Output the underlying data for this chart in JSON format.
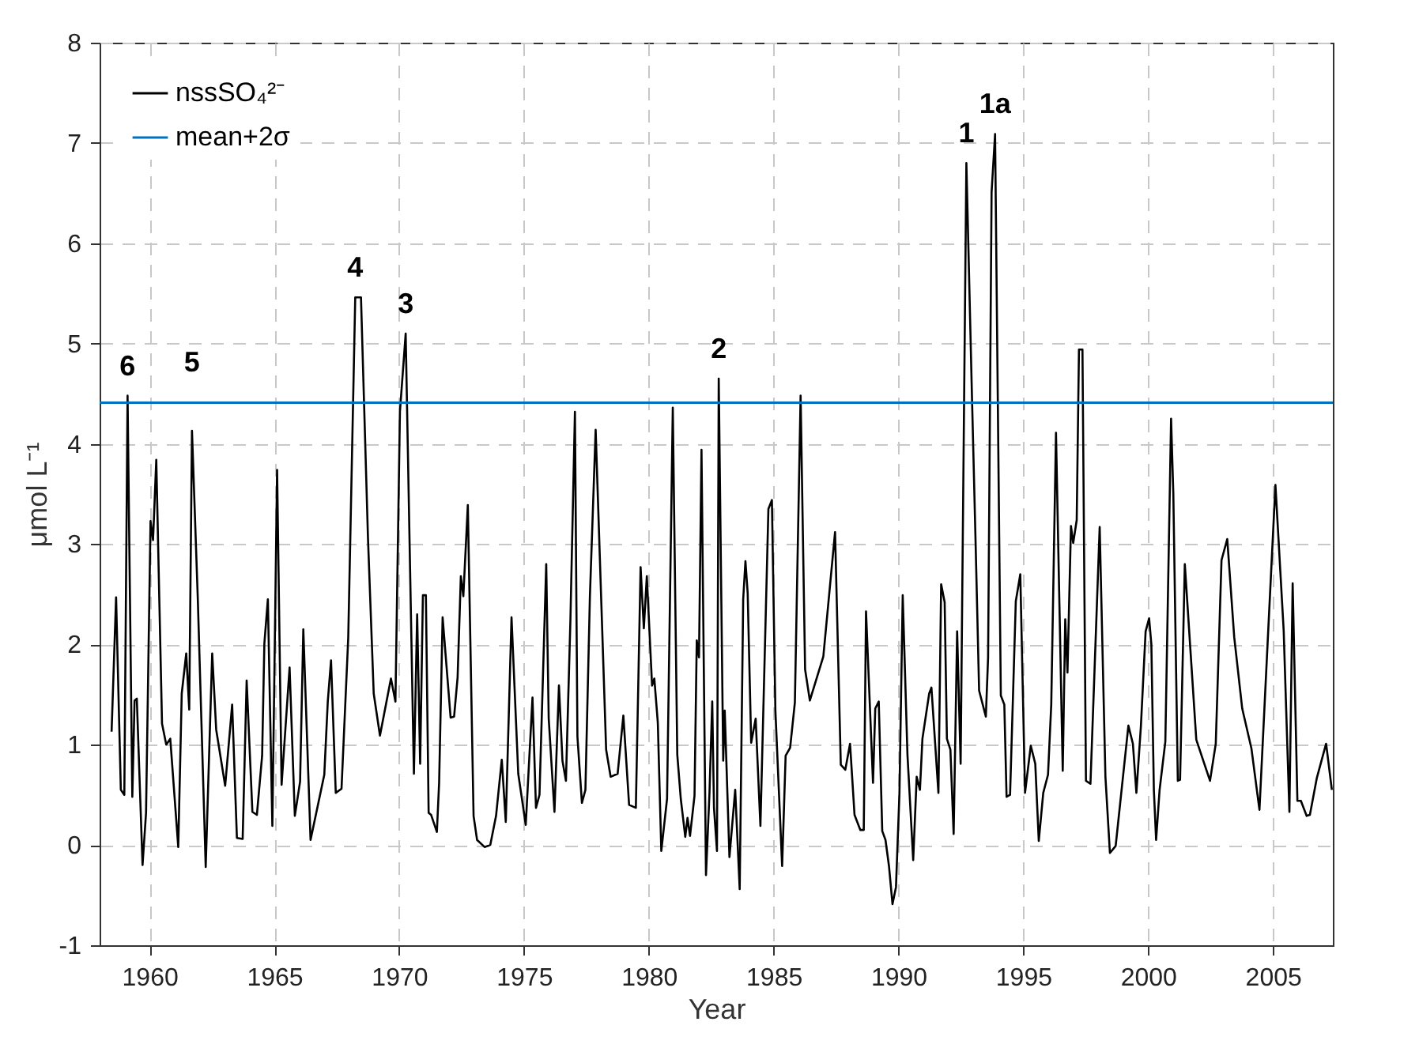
{
  "chart_data": {
    "type": "line",
    "xlabel": "Year",
    "ylabel": "μmol L⁻¹",
    "xlim": [
      1958,
      2007.4
    ],
    "ylim": [
      -1,
      8
    ],
    "xticks": [
      1960,
      1965,
      1970,
      1975,
      1980,
      1985,
      1990,
      1995,
      2000,
      2005
    ],
    "yticks": [
      -1,
      0,
      1,
      2,
      3,
      4,
      5,
      6,
      7,
      8
    ],
    "grid": true,
    "legend": "top left",
    "series": [
      {
        "name": "nssSO₄²⁻",
        "color": "#000000",
        "x": [
          1958.48,
          1958.66,
          1958.85,
          1958.99,
          1959.12,
          1959.31,
          1959.4,
          1959.49,
          1959.72,
          1959.86,
          1960.04,
          1960.14,
          1960.27,
          1960.5,
          1960.67,
          1960.83,
          1961.15,
          1961.29,
          1961.47,
          1961.59,
          1961.7,
          1961.93,
          1962.25,
          1962.51,
          1962.67,
          1963.03,
          1963.31,
          1963.5,
          1963.73,
          1963.89,
          1964.12,
          1964.3,
          1964.51,
          1964.6,
          1964.74,
          1964.92,
          1965.11,
          1965.29,
          1965.61,
          1965.82,
          1966.03,
          1966.16,
          1966.45,
          1967.0,
          1967.14,
          1967.27,
          1967.46,
          1967.69,
          1967.96,
          1968.24,
          1968.47,
          1968.75,
          1968.98,
          1969.23,
          1969.67,
          1969.85,
          1970.03,
          1970.26,
          1970.59,
          1970.72,
          1970.84,
          1970.95,
          1971.07,
          1971.18,
          1971.28,
          1971.51,
          1971.6,
          1971.74,
          1972.06,
          1972.2,
          1972.34,
          1972.47,
          1972.57,
          1972.75,
          1972.98,
          1973.12,
          1973.42,
          1973.65,
          1973.88,
          1974.11,
          1974.27,
          1974.5,
          1974.77,
          1975.07,
          1975.34,
          1975.48,
          1975.62,
          1975.89,
          1975.99,
          1976.22,
          1976.4,
          1976.54,
          1976.68,
          1976.86,
          1977.04,
          1977.14,
          1977.32,
          1977.46,
          1977.64,
          1977.87,
          1978.29,
          1978.47,
          1978.75,
          1978.98,
          1979.21,
          1979.48,
          1979.67,
          1979.8,
          1979.92,
          1980.13,
          1980.22,
          1980.36,
          1980.5,
          1980.73,
          1980.96,
          1981.14,
          1981.28,
          1981.46,
          1981.55,
          1981.65,
          1981.83,
          1981.92,
          1982.01,
          1982.11,
          1982.29,
          1982.43,
          1982.54,
          1982.61,
          1982.73,
          1982.8,
          1982.98,
          1983.04,
          1983.23,
          1983.46,
          1983.64,
          1983.78,
          1983.87,
          1983.96,
          1984.1,
          1984.28,
          1984.47,
          1984.79,
          1984.93,
          1985.07,
          1985.34,
          1985.48,
          1985.66,
          1985.85,
          1986.08,
          1986.26,
          1986.45,
          1986.99,
          1987.46,
          1987.69,
          1987.87,
          1988.06,
          1988.24,
          1988.47,
          1988.61,
          1988.7,
          1988.98,
          1989.07,
          1989.21,
          1989.35,
          1989.48,
          1989.62,
          1989.76,
          1989.9,
          1990.04,
          1990.17,
          1990.36,
          1990.59,
          1990.73,
          1990.86,
          1990.96,
          1991.23,
          1991.32,
          1991.6,
          1991.71,
          1991.85,
          1991.94,
          1992.08,
          1992.21,
          1992.35,
          1992.49,
          1992.72,
          1992.95,
          1993.09,
          1993.23,
          1993.5,
          1993.59,
          1993.73,
          1993.87,
          1994.1,
          1994.24,
          1994.33,
          1994.47,
          1994.7,
          1994.88,
          1995.07,
          1995.3,
          1995.48,
          1995.62,
          1995.8,
          1995.99,
          1996.12,
          1996.31,
          1996.58,
          1996.68,
          1996.77,
          1996.91,
          1997.0,
          1997.14,
          1997.23,
          1997.37,
          1997.51,
          1997.69,
          1998.06,
          1998.29,
          1998.47,
          1998.7,
          1999.21,
          1999.39,
          1999.53,
          1999.71,
          1999.9,
          2000.04,
          2000.13,
          2000.23,
          2000.32,
          2000.46,
          2000.69,
          2000.92,
          2001.01,
          2001.19,
          2001.28,
          2001.47,
          2001.93,
          2002.48,
          2002.71,
          2002.94,
          2003.17,
          2003.45,
          2003.77,
          2004.14,
          2004.46,
          2004.78,
          2005.1,
          2005.43,
          2005.66,
          2005.79,
          2005.98,
          2006.12,
          2006.35,
          2006.48,
          2006.76,
          2007.13,
          2007.36
        ],
        "values": [
          1.13,
          2.47,
          0.55,
          0.5,
          4.48,
          0.48,
          1.44,
          1.46,
          -0.2,
          0.32,
          3.23,
          3.04,
          3.84,
          1.21,
          1.0,
          1.06,
          -0.02,
          1.51,
          1.91,
          1.35,
          4.13,
          2.48,
          -0.22,
          1.91,
          1.15,
          0.59,
          1.4,
          0.07,
          0.06,
          1.64,
          0.33,
          0.3,
          0.89,
          2.01,
          2.45,
          0.19,
          3.74,
          0.6,
          1.77,
          0.29,
          0.63,
          2.15,
          0.05,
          0.7,
          1.43,
          1.84,
          0.52,
          0.56,
          2.07,
          5.46,
          5.46,
          3.06,
          1.51,
          1.09,
          1.66,
          1.43,
          4.32,
          5.1,
          0.71,
          2.3,
          0.81,
          2.49,
          2.49,
          0.32,
          0.3,
          0.13,
          0.62,
          2.27,
          1.27,
          1.28,
          1.67,
          2.68,
          2.48,
          3.39,
          0.29,
          0.05,
          -0.02,
          0.0,
          0.29,
          0.85,
          0.23,
          2.27,
          0.71,
          0.2,
          1.47,
          0.37,
          0.5,
          2.8,
          1.26,
          0.33,
          1.59,
          0.84,
          0.64,
          2.25,
          4.32,
          1.08,
          0.42,
          0.55,
          2.48,
          4.14,
          0.95,
          0.68,
          0.71,
          1.29,
          0.4,
          0.37,
          2.77,
          2.16,
          2.68,
          1.59,
          1.66,
          1.22,
          -0.06,
          0.46,
          4.36,
          0.9,
          0.46,
          0.08,
          0.27,
          0.09,
          0.49,
          2.04,
          1.87,
          3.94,
          -0.3,
          0.52,
          1.43,
          0.37,
          -0.06,
          4.65,
          0.84,
          1.34,
          -0.12,
          0.55,
          -0.44,
          2.45,
          2.83,
          2.51,
          1.02,
          1.26,
          0.19,
          3.35,
          3.44,
          1.34,
          -0.21,
          0.89,
          0.97,
          1.42,
          4.48,
          1.75,
          1.44,
          1.88,
          3.12,
          0.8,
          0.75,
          1.01,
          0.3,
          0.15,
          0.15,
          2.33,
          0.62,
          1.36,
          1.43,
          0.14,
          0.05,
          -0.21,
          -0.59,
          -0.42,
          0.52,
          2.49,
          0.9,
          -0.15,
          0.68,
          0.55,
          1.06,
          1.51,
          1.57,
          0.52,
          2.6,
          2.42,
          1.06,
          0.95,
          0.11,
          2.13,
          0.81,
          6.8,
          4.41,
          3.01,
          1.54,
          1.28,
          1.87,
          6.51,
          7.09,
          1.49,
          1.4,
          0.48,
          0.5,
          2.43,
          2.7,
          0.52,
          0.99,
          0.81,
          0.04,
          0.52,
          0.7,
          1.4,
          4.11,
          0.74,
          2.25,
          1.72,
          3.18,
          3.01,
          3.24,
          4.94,
          4.94,
          0.64,
          0.61,
          3.17,
          0.68,
          -0.08,
          -0.01,
          1.19,
          1.01,
          0.52,
          1.18,
          2.13,
          2.26,
          2.0,
          0.55,
          0.05,
          0.55,
          1.03,
          4.25,
          3.5,
          0.64,
          0.65,
          2.8,
          1.05,
          0.64,
          1.01,
          2.84,
          3.05,
          2.07,
          1.36,
          0.96,
          0.35,
          1.98,
          3.59,
          2.14,
          0.33,
          2.61,
          0.44,
          0.44,
          0.29,
          0.3,
          0.67,
          1.01,
          0.55
        ]
      }
    ],
    "ref_lines": [
      {
        "axis": "y",
        "value": 4.41,
        "label": "mean+2σ",
        "color": "#0072bd"
      }
    ],
    "annotations": [
      {
        "text": "6",
        "x": 1959.12,
        "y": 4.48
      },
      {
        "text": "5",
        "x": 1961.7,
        "y": 4.13
      },
      {
        "text": "4",
        "x": 1968.24,
        "y": 5.46
      },
      {
        "text": "3",
        "x": 1970.26,
        "y": 5.1
      },
      {
        "text": "2",
        "x": 1982.8,
        "y": 4.65
      },
      {
        "text": "1",
        "x": 1992.72,
        "y": 6.8
      },
      {
        "text": "1a",
        "x": 1993.87,
        "y": 7.09
      }
    ]
  }
}
